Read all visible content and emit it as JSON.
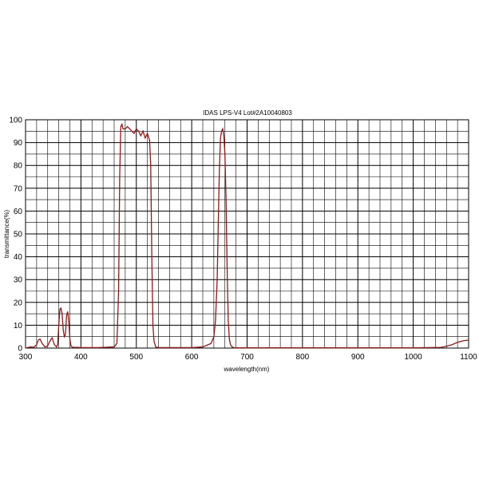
{
  "chart_data": {
    "type": "line",
    "title": "IDAS LPS-V4 Lot#2A10040803",
    "xlabel": "wavelength(nm)",
    "ylabel": "transmittance(%)",
    "xlim": [
      300,
      1100
    ],
    "ylim": [
      0,
      100
    ],
    "x_ticks": [
      "300",
      "400",
      "500",
      "600",
      "700",
      "800",
      "900",
      "1000",
      "1100"
    ],
    "y_ticks": [
      "0",
      "10",
      "20",
      "30",
      "40",
      "50",
      "60",
      "70",
      "80",
      "90",
      "100"
    ],
    "grid": true,
    "line_color": "#8b1a1a",
    "series": [
      {
        "x": [
          300,
          305,
          310,
          315,
          320,
          323,
          326,
          330,
          335,
          340,
          345,
          348,
          352,
          356,
          358,
          360,
          362,
          364,
          366,
          368,
          370,
          372,
          374,
          376,
          378,
          380,
          382,
          384,
          386,
          388,
          390,
          395,
          400,
          430,
          460,
          465,
          468,
          470,
          472,
          474,
          476,
          480,
          484,
          488,
          492,
          496,
          500,
          504,
          508,
          512,
          516,
          520,
          524,
          526,
          528,
          530,
          532,
          535,
          540,
          560,
          600,
          620,
          635,
          640,
          643,
          646,
          648,
          650,
          652,
          654,
          656,
          658,
          660,
          662,
          664,
          666,
          668,
          670,
          673,
          676,
          680,
          700,
          800,
          900,
          1000,
          1050,
          1060,
          1070,
          1080,
          1090,
          1100
        ],
        "y": [
          0,
          0.3,
          0.5,
          0.3,
          1.5,
          3.5,
          4,
          2,
          0.5,
          1,
          3.5,
          4.5,
          1.5,
          0.5,
          1.5,
          10,
          17,
          17.5,
          15,
          8,
          5,
          6,
          14,
          16,
          12,
          4,
          1,
          0.5,
          0.3,
          0.3,
          0.3,
          0.3,
          0.2,
          0.2,
          0.5,
          2,
          25,
          75,
          97,
          98,
          96,
          96,
          97,
          96,
          95,
          94,
          96,
          95,
          93,
          95,
          92,
          94,
          91,
          80,
          40,
          10,
          3,
          0.5,
          0.2,
          0.2,
          0.2,
          0.5,
          2,
          5,
          12,
          30,
          55,
          78,
          92,
          95,
          96,
          93,
          85,
          65,
          35,
          12,
          4,
          1.5,
          0.5,
          0.2,
          0.1,
          0.1,
          0.1,
          0.1,
          0.1,
          0.3,
          0.8,
          1.5,
          2.5,
          3.2,
          3.5
        ]
      }
    ]
  }
}
